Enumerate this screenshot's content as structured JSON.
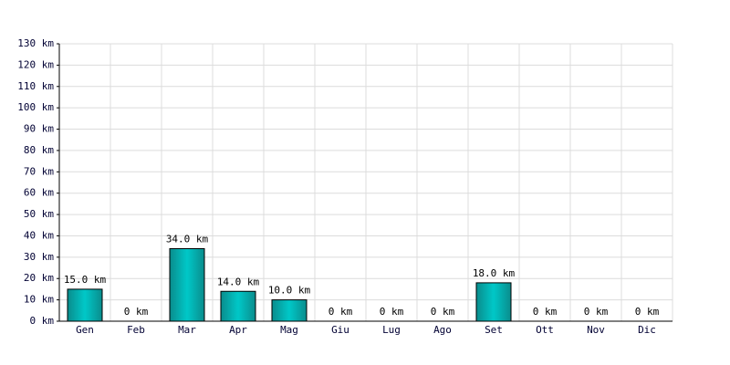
{
  "chart_data": {
    "type": "bar",
    "categories": [
      "Gen",
      "Feb",
      "Mar",
      "Apr",
      "Mag",
      "Giu",
      "Lug",
      "Ago",
      "Set",
      "Ott",
      "Nov",
      "Dic"
    ],
    "values": [
      15,
      0,
      34,
      14,
      10,
      0,
      0,
      0,
      18,
      0,
      0,
      0
    ],
    "value_labels": [
      "15.0 km",
      "0 km",
      "34.0 km",
      "14.0 km",
      "10.0 km",
      "0 km",
      "0 km",
      "0 km",
      "18.0 km",
      "0 km",
      "0 km",
      "0 km"
    ],
    "color": "#00c8c8",
    "ylim": [
      0,
      130
    ],
    "yticks": [
      {
        "value": 0,
        "label": "0 km"
      },
      {
        "value": 10,
        "label": "10 km"
      },
      {
        "value": 20,
        "label": "20 km"
      },
      {
        "value": 30,
        "label": "30 km"
      },
      {
        "value": 40,
        "label": "40 km"
      },
      {
        "value": 50,
        "label": "50 km"
      },
      {
        "value": 60,
        "label": "60 km"
      },
      {
        "value": 70,
        "label": "70 km"
      },
      {
        "value": 80,
        "label": "80 km"
      },
      {
        "value": 90,
        "label": "90 km"
      },
      {
        "value": 100,
        "label": "100 km"
      },
      {
        "value": 110,
        "label": "110 km"
      },
      {
        "value": 120,
        "label": "120 km"
      },
      {
        "value": 130,
        "label": "130 km"
      }
    ],
    "grid": true
  }
}
